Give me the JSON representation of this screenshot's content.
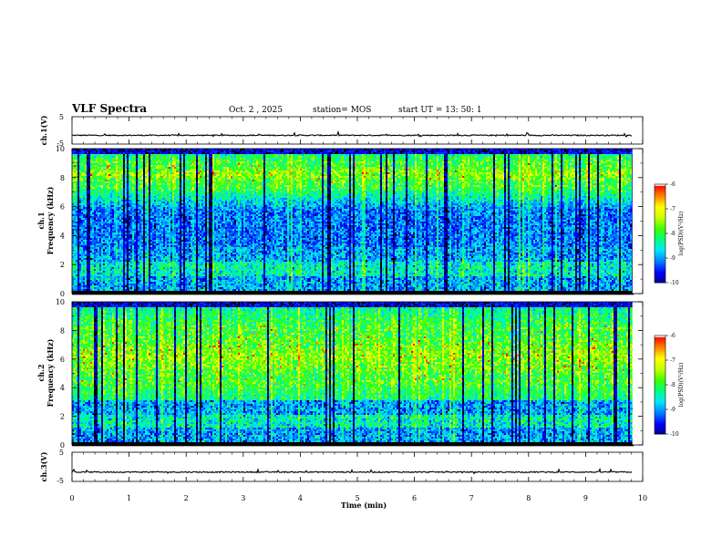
{
  "header": {
    "title": "VLF Spectra",
    "date": "Oct. 2 , 2025",
    "station": "station= MOS",
    "start_ut": "start  UT  =   13: 50: 1"
  },
  "chart_data": {
    "type": "heatmap",
    "title": "VLF Spectra",
    "xlabel": "Time  (min)",
    "xlim": [
      0,
      10
    ],
    "x_ticks": [
      "0",
      "1",
      "2",
      "3",
      "4",
      "5",
      "6",
      "7",
      "8",
      "9",
      "10"
    ],
    "data_end_min": 9.82,
    "waveform_panels": [
      {
        "name": "ch1",
        "ylabel": "ch.1(V)",
        "ylim": [
          -5,
          5
        ],
        "y_ticks": [
          "5",
          "-5"
        ],
        "baseline": -1.8
      },
      {
        "name": "ch3",
        "ylabel": "ch.3(V)",
        "ylim": [
          -5,
          5
        ],
        "y_ticks": [
          "5",
          "-5"
        ],
        "baseline": -1.8
      }
    ],
    "spectrogram_panels": [
      {
        "name": "ch1",
        "ylabel_line1": "ch.1",
        "ylabel_line2": "Frequency (kHz)",
        "ylim": [
          0,
          10
        ],
        "y_ticks": [
          "0",
          "2",
          "4",
          "6",
          "8",
          "10"
        ],
        "intense_band_khz": [
          7.5,
          9.0
        ]
      },
      {
        "name": "ch2",
        "ylabel_line1": "ch.2",
        "ylabel_line2": "Frequency (kHz)",
        "ylim": [
          0,
          10
        ],
        "y_ticks": [
          "0",
          "2",
          "4",
          "6",
          "8",
          "10"
        ],
        "intense_band_khz": [
          4.5,
          8.0
        ]
      }
    ],
    "colorbar": {
      "range": [
        -10,
        -6
      ],
      "ticks": [
        "-6",
        "-7",
        "-8",
        "-9",
        "-10"
      ],
      "label": "log(PSD)(V²/Hz)"
    }
  },
  "colors": {
    "scale": [
      "#000000",
      "#00008b",
      "#0000ff",
      "#0080ff",
      "#00e5ff",
      "#00ff80",
      "#40ff00",
      "#c8ff00",
      "#ffff00",
      "#ff8000",
      "#ff0000",
      "#ffffff"
    ]
  }
}
